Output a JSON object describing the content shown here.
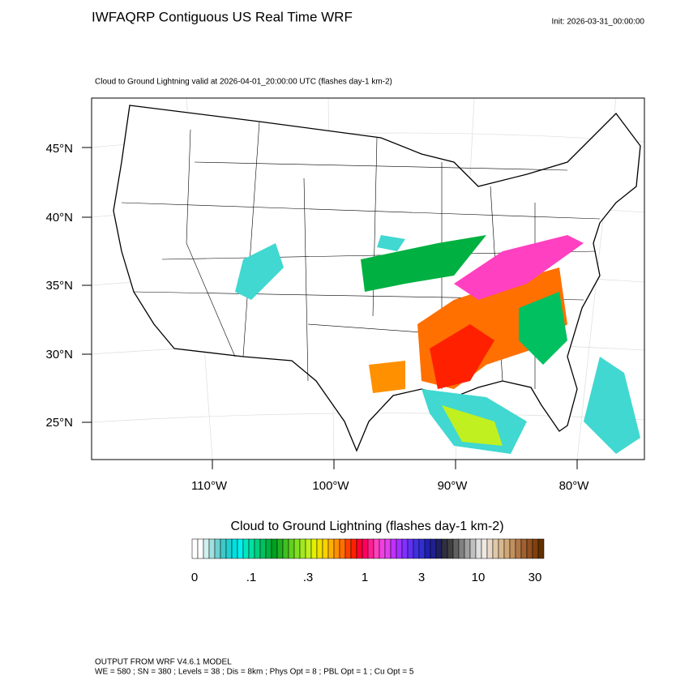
{
  "header": {
    "title": "IWFAQRP Contiguous US Real Time WRF",
    "init": "Init: 2026-03-31_00:00:00",
    "subtitle": "Cloud to Ground Lightning valid at 2026-04-01_20:00:00 UTC   (flashes day-1 km-2)"
  },
  "map": {
    "lat_labels": [
      "45°N",
      "40°N",
      "35°N",
      "30°N",
      "25°N"
    ],
    "lon_labels": [
      "110°W",
      "100°W",
      "90°W",
      "80°W"
    ]
  },
  "colorbar": {
    "title": "Cloud to Ground Lightning  (flashes day-1 km-2)",
    "labels": [
      "0",
      ".1",
      ".3",
      "1",
      "3",
      "10",
      "30"
    ],
    "colors": [
      "#ffffff",
      "#ffffff",
      "#d0f0f0",
      "#a0e0e0",
      "#70d0d0",
      "#40c8c8",
      "#20d0d0",
      "#00e0e0",
      "#00f0f0",
      "#00e8c0",
      "#00e0a0",
      "#00d080",
      "#00c060",
      "#00b040",
      "#00a020",
      "#20b020",
      "#40c020",
      "#60d020",
      "#80e020",
      "#a0e820",
      "#c0f020",
      "#e0f000",
      "#f0e000",
      "#ffd000",
      "#ffb000",
      "#ff9000",
      "#ff7000",
      "#ff4000",
      "#ff2000",
      "#ff0030",
      "#ff0060",
      "#ff2090",
      "#ff40c0",
      "#f040e0",
      "#e040f0",
      "#c030ff",
      "#a030ff",
      "#8030ff",
      "#6030f0",
      "#4030e0",
      "#3030d0",
      "#2020b0",
      "#202090",
      "#202060",
      "#303040",
      "#404040",
      "#606060",
      "#808080",
      "#a0a0a0",
      "#c0c0c0",
      "#e0e0e0",
      "#f0e8e0",
      "#e8d8c8",
      "#e0c8a8",
      "#d8b890",
      "#d0a878",
      "#c09060",
      "#b07848",
      "#a06030",
      "#905020",
      "#804010",
      "#603000"
    ]
  },
  "footer": {
    "line1": "OUTPUT FROM WRF V4.6.1 MODEL",
    "line2": "WE = 580 ; SN = 380 ; Levels = 38 ; Dis = 8km ; Phys Opt = 8 ; PBL Opt = 1 ; Cu Opt = 5"
  }
}
